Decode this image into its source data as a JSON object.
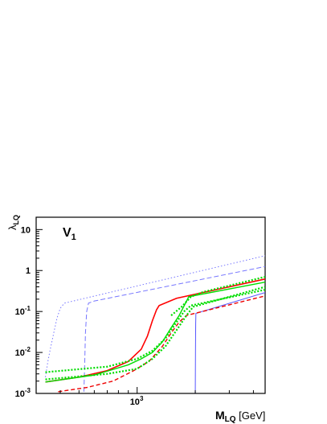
{
  "chart_data": {
    "type": "line",
    "title": "",
    "panel_label": {
      "main": "V",
      "sub": "1"
    },
    "xlabel": {
      "main": "M",
      "sub": "LQ",
      "unit": " [GeV]"
    },
    "ylabel": {
      "main": "λ",
      "sub": "LQ"
    },
    "xscale": "log",
    "yscale": "log",
    "xlim": [
      300,
      4600
    ],
    "ylim": [
      0.001,
      20
    ],
    "grid": false,
    "legend": "none",
    "x_ticks": [
      {
        "value": 1000,
        "base": "10",
        "exp": "3"
      }
    ],
    "y_ticks": [
      {
        "value": 10,
        "base": "10",
        "exp": ""
      },
      {
        "value": 1,
        "base": "1",
        "exp": ""
      },
      {
        "value": 0.1,
        "base": "10",
        "exp": "-1"
      },
      {
        "value": 0.01,
        "base": "10",
        "exp": "-2"
      },
      {
        "value": 0.001,
        "base": "10",
        "exp": "-3"
      }
    ],
    "series": [
      {
        "color": "#7777ff",
        "dash": "1.5,2.5",
        "width": 1,
        "points": [
          [
            335,
            0.0025
          ],
          [
            345,
            0.006
          ],
          [
            355,
            0.012
          ],
          [
            370,
            0.03
          ],
          [
            385,
            0.07
          ],
          [
            400,
            0.12
          ],
          [
            420,
            0.16
          ],
          [
            4600,
            2.3
          ]
        ]
      },
      {
        "color": "#7777ff",
        "dash": "6,3",
        "width": 1,
        "points": [
          [
            530,
            0.0011
          ],
          [
            535,
            0.005
          ],
          [
            540,
            0.03
          ],
          [
            548,
            0.1
          ],
          [
            560,
            0.16
          ],
          [
            600,
            0.18
          ],
          [
            4600,
            1.25
          ]
        ]
      },
      {
        "color": "#5555ff",
        "dash": "",
        "width": 1,
        "points": [
          [
            2000,
            0.0009
          ],
          [
            2005,
            0.01
          ],
          [
            2010,
            0.05
          ],
          [
            2015,
            0.09
          ],
          [
            4600,
            0.29
          ]
        ]
      },
      {
        "color": "#ff0000",
        "dash": "",
        "width": 1.6,
        "points": [
          [
            335,
            0.0019
          ],
          [
            500,
            0.0025
          ],
          [
            700,
            0.0036
          ],
          [
            900,
            0.006
          ],
          [
            1050,
            0.012
          ],
          [
            1130,
            0.025
          ],
          [
            1200,
            0.06
          ],
          [
            1260,
            0.11
          ],
          [
            1300,
            0.14
          ],
          [
            1600,
            0.21
          ],
          [
            4600,
            0.62
          ]
        ]
      },
      {
        "color": "#ee0000",
        "dash": "5,3",
        "width": 1.4,
        "points": [
          [
            390,
            0.0011
          ],
          [
            550,
            0.0014
          ],
          [
            750,
            0.002
          ],
          [
            950,
            0.0035
          ],
          [
            1150,
            0.006
          ],
          [
            1350,
            0.014
          ],
          [
            1500,
            0.03
          ],
          [
            1650,
            0.055
          ],
          [
            1800,
            0.08
          ],
          [
            4600,
            0.24
          ]
        ]
      },
      {
        "color": "#00dd00",
        "dash": "",
        "width": 1.4,
        "points": [
          [
            335,
            0.0019
          ],
          [
            600,
            0.0028
          ],
          [
            900,
            0.005
          ],
          [
            1050,
            0.007
          ],
          [
            1200,
            0.01
          ],
          [
            1350,
            0.018
          ],
          [
            1500,
            0.04
          ],
          [
            1650,
            0.08
          ],
          [
            1780,
            0.16
          ],
          [
            1850,
            0.23
          ],
          [
            4600,
            0.52
          ]
        ]
      },
      {
        "color": "#00dd00",
        "dash": "2,2",
        "width": 2.2,
        "points": [
          [
            335,
            0.0033
          ],
          [
            700,
            0.0045
          ],
          [
            1000,
            0.007
          ],
          [
            1200,
            0.011
          ],
          [
            1400,
            0.022
          ],
          [
            1600,
            0.055
          ],
          [
            1750,
            0.1
          ],
          [
            1900,
            0.14
          ],
          [
            4600,
            0.34
          ]
        ]
      },
      {
        "color": "#00dd00",
        "dash": "2,2",
        "width": 2.2,
        "points": [
          [
            335,
            0.0022
          ],
          [
            700,
            0.003
          ],
          [
            1000,
            0.004
          ],
          [
            1200,
            0.007
          ],
          [
            1400,
            0.014
          ],
          [
            1600,
            0.035
          ],
          [
            1800,
            0.08
          ],
          [
            1950,
            0.13
          ],
          [
            4600,
            0.4
          ]
        ]
      },
      {
        "color": "#00dd00",
        "dash": "2,2",
        "width": 2.2,
        "points": [
          [
            1500,
            0.08
          ],
          [
            1700,
            0.13
          ],
          [
            1900,
            0.23
          ],
          [
            2200,
            0.3
          ],
          [
            4600,
            0.7
          ]
        ]
      }
    ]
  }
}
